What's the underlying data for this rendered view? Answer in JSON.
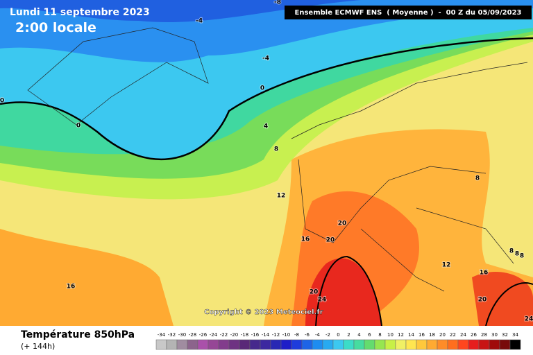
{
  "header": {
    "date": "Lundi 11 septembre 2023",
    "time": "2:00 locale",
    "run": "Ensemble ECMWF ENS  ( Moyenne )  -  00 Z du 05/09/2023"
  },
  "copyright": "Copyright © 2023 Meteociel.fr",
  "footer": {
    "title": "Température 850hPa",
    "subtitle": "(+ 144h)"
  },
  "map": {
    "contour_labels": [
      -8,
      -4,
      -4,
      0,
      0,
      0,
      4,
      8,
      12,
      16,
      20,
      20,
      16,
      20,
      24,
      12,
      16,
      8,
      8,
      8,
      8,
      20,
      24
    ]
  },
  "legend": {
    "ticks": [
      -34,
      -32,
      -30,
      -28,
      -26,
      -24,
      -22,
      -20,
      -18,
      -16,
      -14,
      -12,
      -10,
      -8,
      -6,
      -4,
      -2,
      0,
      2,
      4,
      6,
      8,
      10,
      12,
      14,
      16,
      18,
      20,
      22,
      24,
      26,
      28,
      30,
      32,
      34
    ],
    "colors": [
      "#c8c8c8",
      "#b4b4b4",
      "#a08ca0",
      "#8c648c",
      "#aa50aa",
      "#964696",
      "#823c8c",
      "#6e3282",
      "#5a2878",
      "#46288c",
      "#3c28a0",
      "#2828b4",
      "#1e1ec8",
      "#1e3cdc",
      "#1e64e6",
      "#1e8cf0",
      "#28aaf0",
      "#3cc8f0",
      "#3cdcc8",
      "#46dca0",
      "#64dc6e",
      "#96e650",
      "#c8f046",
      "#f0f064",
      "#ffe650",
      "#ffc83c",
      "#ffaa32",
      "#ff8c28",
      "#ff6e1e",
      "#ff461e",
      "#e61e1e",
      "#c81414",
      "#a00a0a",
      "#780a0a",
      "#000000"
    ]
  }
}
